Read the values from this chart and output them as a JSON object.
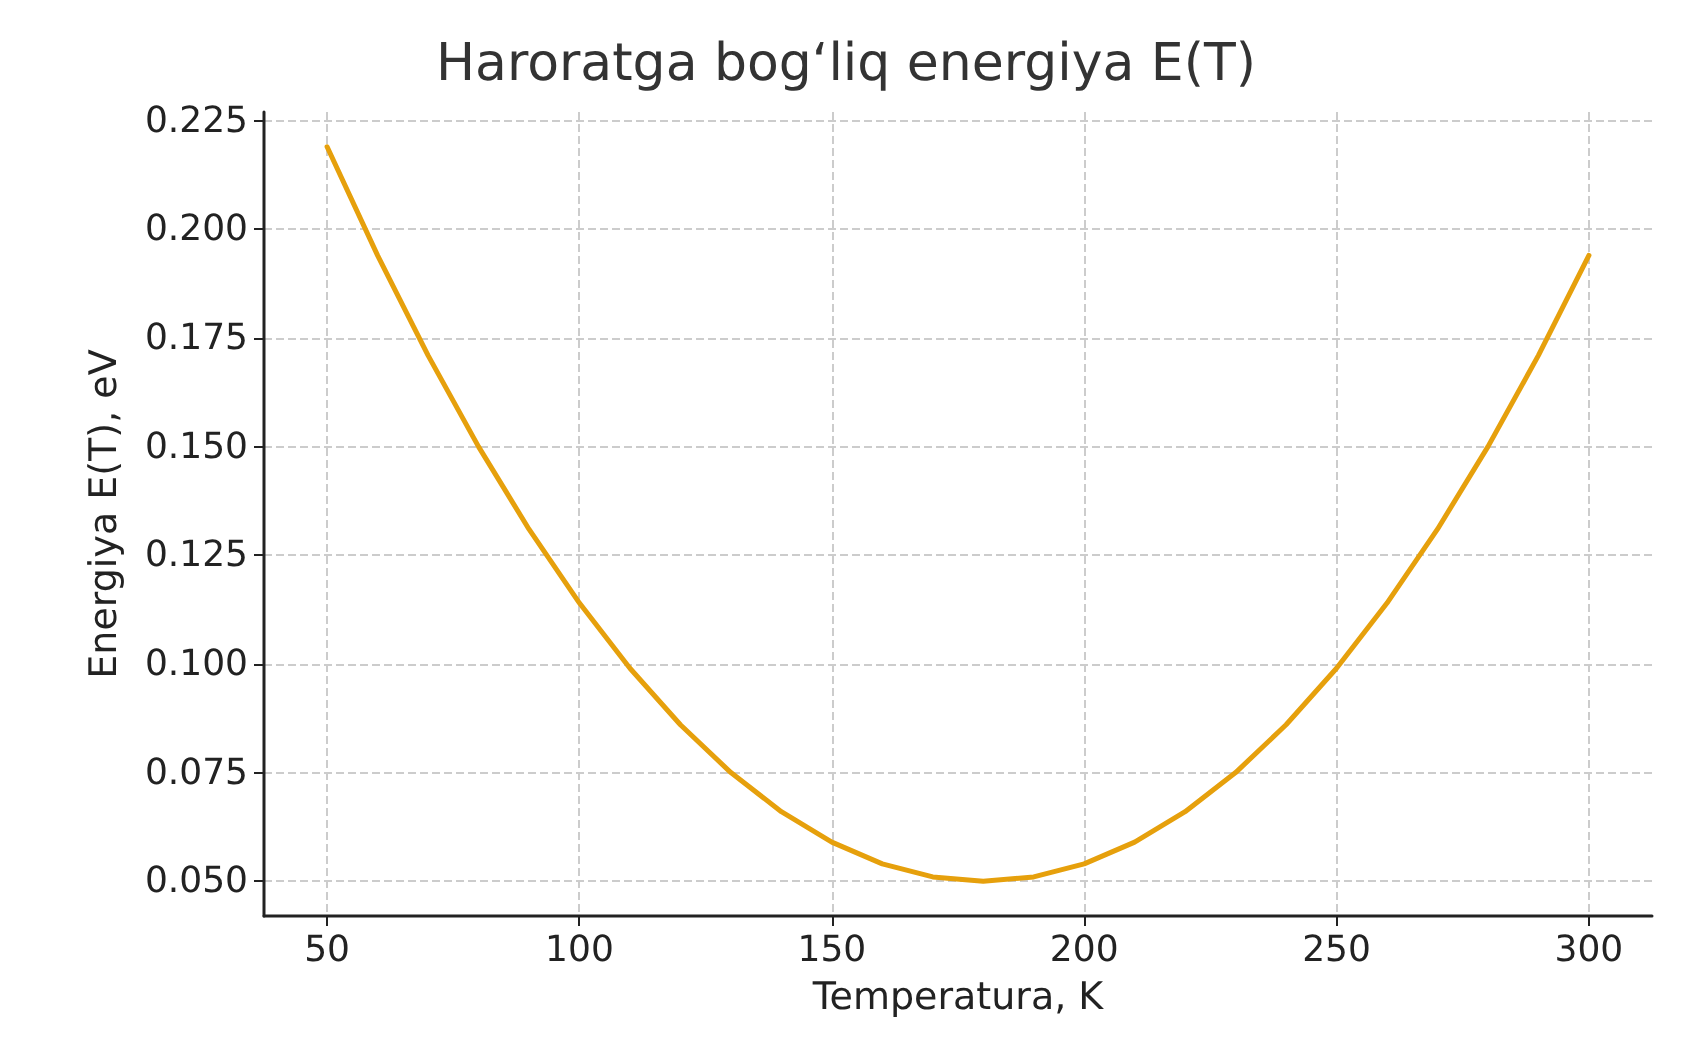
{
  "chart_data": {
    "type": "line",
    "title": "Haroratga bog‘liq energiya E(T)",
    "xlabel": "Temperatura, K",
    "ylabel": "Energiya E(T), eV",
    "x": [
      50,
      60,
      70,
      80,
      90,
      100,
      110,
      120,
      130,
      140,
      150,
      160,
      170,
      180,
      190,
      200,
      210,
      220,
      230,
      240,
      250,
      260,
      270,
      280,
      290,
      300
    ],
    "series": [
      {
        "color": "#e6a00c",
        "values": [
          0.219,
          0.194,
          0.171,
          0.15,
          0.131,
          0.114,
          0.099,
          0.086,
          0.075,
          0.066,
          0.059,
          0.054,
          0.051,
          0.05,
          0.051,
          0.054,
          0.059,
          0.066,
          0.075,
          0.086,
          0.099,
          0.114,
          0.131,
          0.15,
          0.171,
          0.194
        ]
      }
    ],
    "xlim": [
      37.5,
      312.5
    ],
    "xticks": [
      50,
      100,
      150,
      200,
      250,
      300
    ],
    "ylim": [
      0.042,
      0.227
    ],
    "yticks": [
      {
        "value": 0.05,
        "label": "0.050"
      },
      {
        "value": 0.075,
        "label": "0.075"
      },
      {
        "value": 0.1,
        "label": "0.100"
      },
      {
        "value": 0.125,
        "label": "0.125"
      },
      {
        "value": 0.15,
        "label": "0.150"
      },
      {
        "value": 0.175,
        "label": "0.175"
      },
      {
        "value": 0.2,
        "label": "0.200"
      },
      {
        "value": 0.225,
        "label": "0.225"
      }
    ],
    "grid": true,
    "marker": "none",
    "line_style": "solid"
  }
}
